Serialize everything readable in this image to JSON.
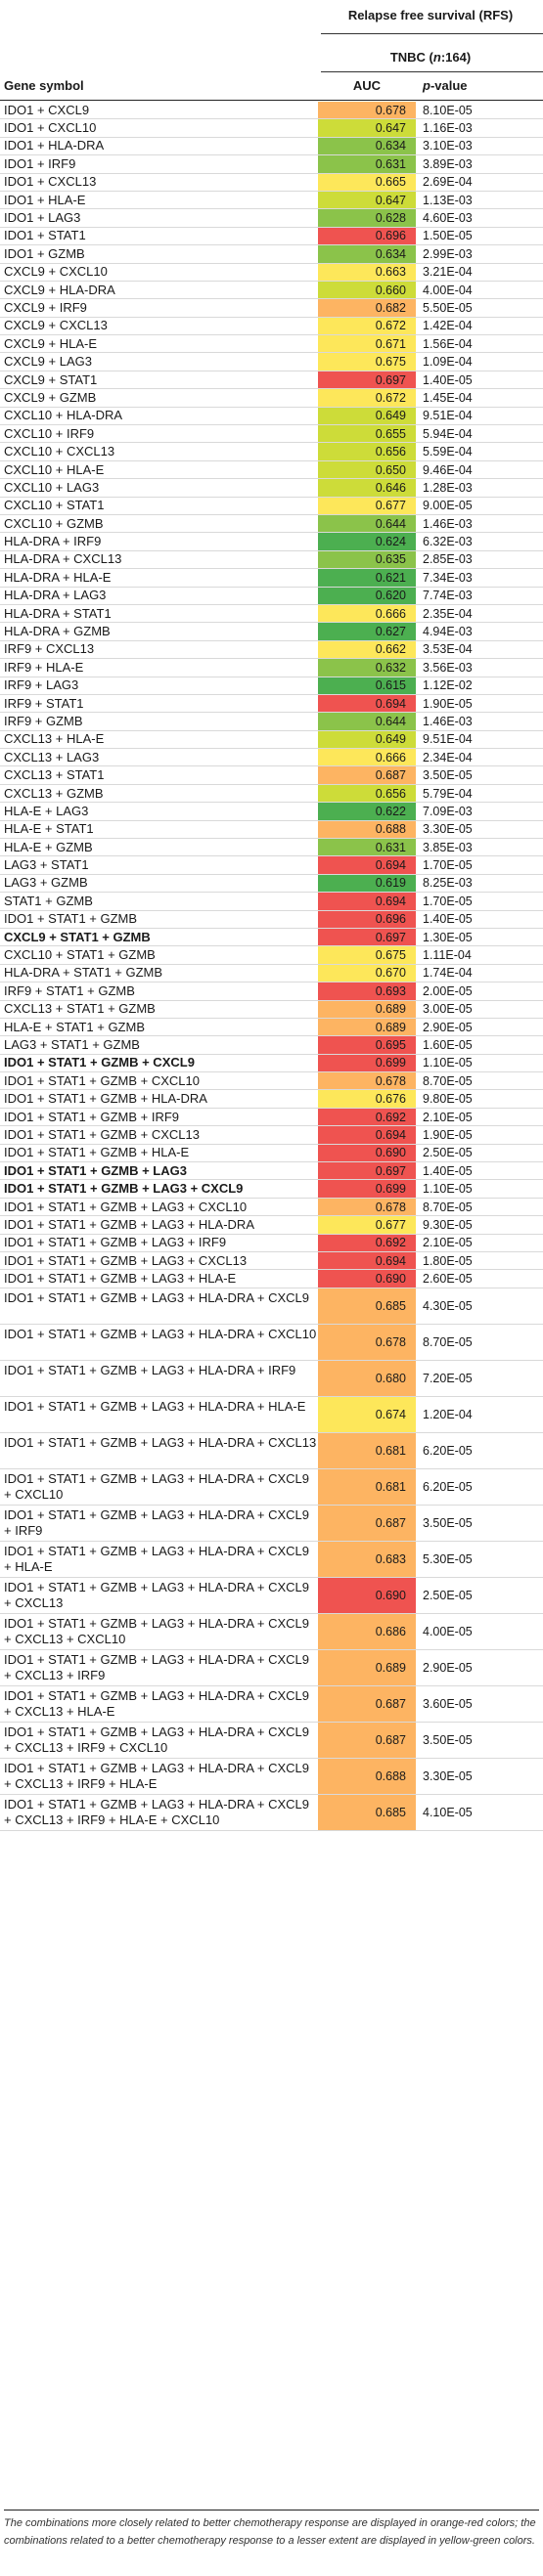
{
  "header": {
    "rfs_label": "Relapse free survival (RFS)",
    "cohort_prefix": "TNBC (",
    "cohort_n": "n",
    "cohort_suffix": ":164)",
    "col_gene": "Gene symbol",
    "col_auc": "AUC",
    "col_p_italic": "p",
    "col_p_rest": "-value"
  },
  "colors": {
    "deep_green": "#4caf50",
    "green": "#8bc34a",
    "yellow_green": "#cddc39",
    "yellow": "#fde75a",
    "orange": "#fdb462",
    "red": "#ef5350"
  },
  "rows": [
    {
      "gene": "IDO1 + CXCL9",
      "auc": "0.678",
      "p": "8.10E-05"
    },
    {
      "gene": "IDO1 + CXCL10",
      "auc": "0.647",
      "p": "1.16E-03"
    },
    {
      "gene": "IDO1 + HLA-DRA",
      "auc": "0.634",
      "p": "3.10E-03"
    },
    {
      "gene": "IDO1 + IRF9",
      "auc": "0.631",
      "p": "3.89E-03"
    },
    {
      "gene": "IDO1 + CXCL13",
      "auc": "0.665",
      "p": "2.69E-04"
    },
    {
      "gene": "IDO1 + HLA-E",
      "auc": "0.647",
      "p": "1.13E-03"
    },
    {
      "gene": "IDO1 + LAG3",
      "auc": "0.628",
      "p": "4.60E-03"
    },
    {
      "gene": "IDO1 + STAT1",
      "auc": "0.696",
      "p": "1.50E-05"
    },
    {
      "gene": "IDO1 + GZMB",
      "auc": "0.634",
      "p": "2.99E-03"
    },
    {
      "gene": "CXCL9 + CXCL10",
      "auc": "0.663",
      "p": "3.21E-04"
    },
    {
      "gene": "CXCL9 + HLA-DRA",
      "auc": "0.660",
      "p": "4.00E-04"
    },
    {
      "gene": "CXCL9 + IRF9",
      "auc": "0.682",
      "p": "5.50E-05"
    },
    {
      "gene": "CXCL9 + CXCL13",
      "auc": "0.672",
      "p": "1.42E-04"
    },
    {
      "gene": "CXCL9 + HLA-E",
      "auc": "0.671",
      "p": "1.56E-04"
    },
    {
      "gene": "CXCL9 + LAG3",
      "auc": "0.675",
      "p": "1.09E-04"
    },
    {
      "gene": "CXCL9 + STAT1",
      "auc": "0.697",
      "p": "1.40E-05"
    },
    {
      "gene": "CXCL9 + GZMB",
      "auc": "0.672",
      "p": "1.45E-04"
    },
    {
      "gene": "CXCL10 + HLA-DRA",
      "auc": "0.649",
      "p": "9.51E-04"
    },
    {
      "gene": "CXCL10 + IRF9",
      "auc": "0.655",
      "p": "5.94E-04"
    },
    {
      "gene": "CXCL10 + CXCL13",
      "auc": "0.656",
      "p": "5.59E-04"
    },
    {
      "gene": "CXCL10 + HLA-E",
      "auc": "0.650",
      "p": "9.46E-04"
    },
    {
      "gene": "CXCL10 + LAG3",
      "auc": "0.646",
      "p": "1.28E-03"
    },
    {
      "gene": "CXCL10 + STAT1",
      "auc": "0.677",
      "p": "9.00E-05"
    },
    {
      "gene": "CXCL10 + GZMB",
      "auc": "0.644",
      "p": "1.46E-03"
    },
    {
      "gene": "HLA-DRA + IRF9",
      "auc": "0.624",
      "p": "6.32E-03"
    },
    {
      "gene": "HLA-DRA + CXCL13",
      "auc": "0.635",
      "p": "2.85E-03"
    },
    {
      "gene": "HLA-DRA + HLA-E",
      "auc": "0.621",
      "p": "7.34E-03"
    },
    {
      "gene": "HLA-DRA + LAG3",
      "auc": "0.620",
      "p": "7.74E-03"
    },
    {
      "gene": "HLA-DRA + STAT1",
      "auc": "0.666",
      "p": "2.35E-04"
    },
    {
      "gene": "HLA-DRA + GZMB",
      "auc": "0.627",
      "p": "4.94E-03"
    },
    {
      "gene": "IRF9 + CXCL13",
      "auc": "0.662",
      "p": "3.53E-04"
    },
    {
      "gene": "IRF9 + HLA-E",
      "auc": "0.632",
      "p": "3.56E-03"
    },
    {
      "gene": "IRF9 + LAG3",
      "auc": "0.615",
      "p": "1.12E-02"
    },
    {
      "gene": "IRF9 + STAT1",
      "auc": "0.694",
      "p": "1.90E-05"
    },
    {
      "gene": "IRF9 + GZMB",
      "auc": "0.644",
      "p": "1.46E-03"
    },
    {
      "gene": "CXCL13 + HLA-E",
      "auc": "0.649",
      "p": "9.51E-04"
    },
    {
      "gene": "CXCL13 + LAG3",
      "auc": "0.666",
      "p": "2.34E-04"
    },
    {
      "gene": "CXCL13 + STAT1",
      "auc": "0.687",
      "p": "3.50E-05"
    },
    {
      "gene": "CXCL13 + GZMB",
      "auc": "0.656",
      "p": "5.79E-04"
    },
    {
      "gene": "HLA-E + LAG3",
      "auc": "0.622",
      "p": "7.09E-03"
    },
    {
      "gene": "HLA-E + STAT1",
      "auc": "0.688",
      "p": "3.30E-05"
    },
    {
      "gene": "HLA-E + GZMB",
      "auc": "0.631",
      "p": "3.85E-03"
    },
    {
      "gene": "LAG3 + STAT1",
      "auc": "0.694",
      "p": "1.70E-05"
    },
    {
      "gene": "LAG3 + GZMB",
      "auc": "0.619",
      "p": "8.25E-03"
    },
    {
      "gene": "STAT1 + GZMB",
      "auc": "0.694",
      "p": "1.70E-05"
    },
    {
      "gene": "IDO1 + STAT1 + GZMB",
      "auc": "0.696",
      "p": "1.40E-05"
    },
    {
      "gene": "CXCL9 + STAT1 + GZMB",
      "auc": "0.697",
      "p": "1.30E-05",
      "bold": true
    },
    {
      "gene": "CXCL10 + STAT1 + GZMB",
      "auc": "0.675",
      "p": "1.11E-04"
    },
    {
      "gene": "HLA-DRA + STAT1 + GZMB",
      "auc": "0.670",
      "p": "1.74E-04"
    },
    {
      "gene": "IRF9 + STAT1 + GZMB",
      "auc": "0.693",
      "p": "2.00E-05"
    },
    {
      "gene": "CXCL13 + STAT1 + GZMB",
      "auc": "0.689",
      "p": "3.00E-05"
    },
    {
      "gene": "HLA-E + STAT1 + GZMB",
      "auc": "0.689",
      "p": "2.90E-05"
    },
    {
      "gene": "LAG3 + STAT1 + GZMB",
      "auc": "0.695",
      "p": "1.60E-05"
    },
    {
      "gene": "IDO1 + STAT1 + GZMB + CXCL9",
      "auc": "0.699",
      "p": "1.10E-05",
      "bold": true
    },
    {
      "gene": "IDO1 + STAT1 + GZMB + CXCL10",
      "auc": "0.678",
      "p": "8.70E-05"
    },
    {
      "gene": "IDO1 + STAT1 + GZMB + HLA-DRA",
      "auc": "0.676",
      "p": "9.80E-05"
    },
    {
      "gene": "IDO1 + STAT1 + GZMB + IRF9",
      "auc": "0.692",
      "p": "2.10E-05"
    },
    {
      "gene": "IDO1 + STAT1 + GZMB + CXCL13",
      "auc": "0.694",
      "p": "1.90E-05"
    },
    {
      "gene": "IDO1 + STAT1 + GZMB + HLA-E",
      "auc": "0.690",
      "p": "2.50E-05"
    },
    {
      "gene": "IDO1 + STAT1 + GZMB + LAG3",
      "auc": "0.697",
      "p": "1.40E-05",
      "bold": true
    },
    {
      "gene": "IDO1 + STAT1 + GZMB + LAG3 + CXCL9",
      "auc": "0.699",
      "p": "1.10E-05",
      "bold": true
    },
    {
      "gene": "IDO1 + STAT1 + GZMB + LAG3 + CXCL10",
      "auc": "0.678",
      "p": "8.70E-05"
    },
    {
      "gene": "IDO1 + STAT1 + GZMB + LAG3 + HLA-DRA",
      "auc": "0.677",
      "p": "9.30E-05"
    },
    {
      "gene": "IDO1 + STAT1 + GZMB + LAG3 + IRF9",
      "auc": "0.692",
      "p": "2.10E-05"
    },
    {
      "gene": "IDO1 + STAT1 + GZMB + LAG3 + CXCL13",
      "auc": "0.694",
      "p": "1.80E-05"
    },
    {
      "gene": "IDO1 + STAT1 + GZMB + LAG3 + HLA-E",
      "auc": "0.690",
      "p": "2.60E-05"
    },
    {
      "gene": "IDO1 + STAT1 + GZMB + LAG3 + HLA-DRA + CXCL9",
      "auc": "0.685",
      "p": "4.30E-05"
    },
    {
      "gene": "IDO1 + STAT1 + GZMB + LAG3 + HLA-DRA + CXCL10",
      "auc": "0.678",
      "p": "8.70E-05"
    },
    {
      "gene": "IDO1 + STAT1 + GZMB + LAG3 + HLA-DRA + IRF9",
      "auc": "0.680",
      "p": "7.20E-05"
    },
    {
      "gene": "IDO1 + STAT1 + GZMB + LAG3 + HLA-DRA + HLA-E",
      "auc": "0.674",
      "p": "1.20E-04"
    },
    {
      "gene": "IDO1 + STAT1 + GZMB + LAG3 + HLA-DRA + CXCL13",
      "auc": "0.681",
      "p": "6.20E-05"
    },
    {
      "gene": "IDO1 + STAT1 + GZMB + LAG3 + HLA-DRA + CXCL9 + CXCL10",
      "auc": "0.681",
      "p": "6.20E-05"
    },
    {
      "gene": "IDO1 + STAT1 + GZMB + LAG3 + HLA-DRA + CXCL9 + IRF9",
      "auc": "0.687",
      "p": "3.50E-05"
    },
    {
      "gene": "IDO1 + STAT1 + GZMB + LAG3 + HLA-DRA + CXCL9 + HLA-E",
      "auc": "0.683",
      "p": "5.30E-05"
    },
    {
      "gene": "IDO1 + STAT1 + GZMB + LAG3 + HLA-DRA + CXCL9 + CXCL13",
      "auc": "0.690",
      "p": "2.50E-05"
    },
    {
      "gene": "IDO1 + STAT1 + GZMB + LAG3 + HLA-DRA + CXCL9 + CXCL13 + CXCL10",
      "auc": "0.686",
      "p": "4.00E-05"
    },
    {
      "gene": "IDO1 + STAT1 + GZMB + LAG3 + HLA-DRA + CXCL9 + CXCL13 + IRF9",
      "auc": "0.689",
      "p": "2.90E-05"
    },
    {
      "gene": "IDO1 + STAT1 + GZMB + LAG3 + HLA-DRA + CXCL9 + CXCL13 + HLA-E",
      "auc": "0.687",
      "p": "3.60E-05"
    },
    {
      "gene": "IDO1 + STAT1 + GZMB + LAG3 + HLA-DRA + CXCL9 + CXCL13 + IRF9 + CXCL10",
      "auc": "0.687",
      "p": "3.50E-05"
    },
    {
      "gene": "IDO1 + STAT1 + GZMB + LAG3 + HLA-DRA + CXCL9 + CXCL13 + IRF9 + HLA-E",
      "auc": "0.688",
      "p": "3.30E-05"
    },
    {
      "gene": "IDO1 + STAT1 + GZMB + LAG3 + HLA-DRA + CXCL9 + CXCL13 + IRF9 + HLA-E + CXCL10",
      "auc": "0.685",
      "p": "4.10E-05"
    }
  ],
  "footnote": "The combinations more closely related to better chemotherapy response are displayed in orange-red colors; the combinations related to a better chemotherapy response to a lesser extent are displayed in yellow-green colors."
}
